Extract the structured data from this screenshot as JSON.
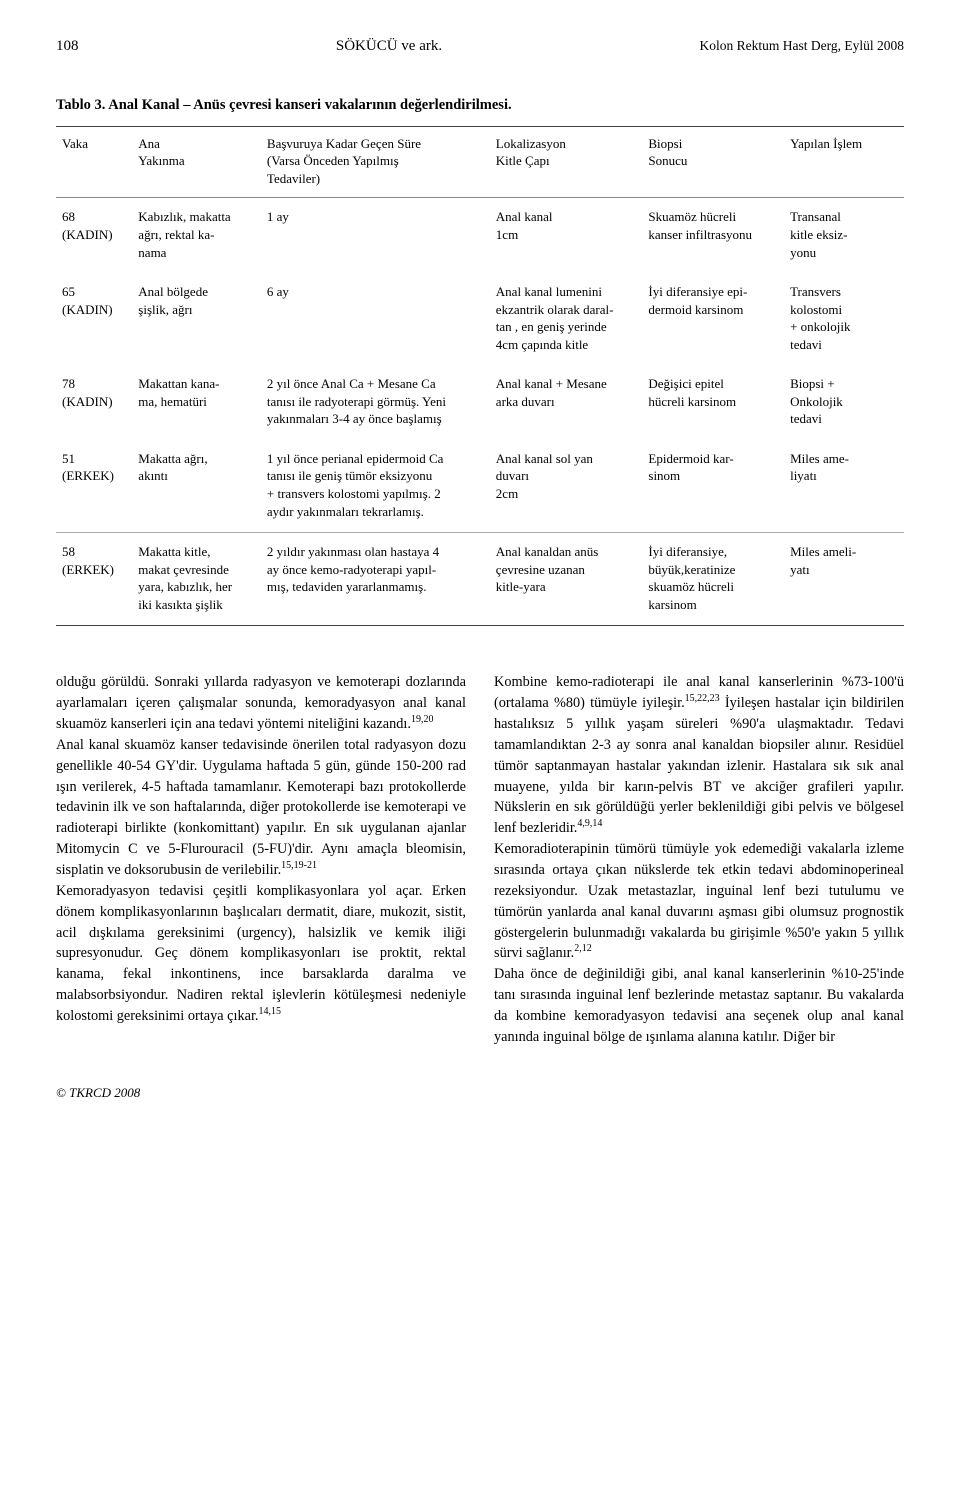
{
  "meta": {
    "page_number": "108",
    "running_authors": "SÖKÜCÜ ve ark.",
    "running_journal": "Kolon Rektum Hast Derg, Eylül 2008",
    "footer": "© TKRCD 2008"
  },
  "table": {
    "caption": "Tablo 3. Anal Kanal – Anüs çevresi kanseri vakalarının değerlendirilmesi.",
    "columns": [
      {
        "key": "vaka",
        "label": "Vaka",
        "width_class": "col-vaka"
      },
      {
        "key": "ana",
        "label": "Ana\nYakınma",
        "width_class": "col-ana"
      },
      {
        "key": "basv",
        "label": "Başvuruya Kadar Geçen Süre\n(Varsa Önceden Yapılmış\nTedaviler)",
        "width_class": "col-basv"
      },
      {
        "key": "lok",
        "label": "Lokalizasyon\nKitle Çapı",
        "width_class": "col-lok"
      },
      {
        "key": "biopsi",
        "label": "Biopsi\nSonucu",
        "width_class": "col-biopsi"
      },
      {
        "key": "islem",
        "label": "Yapılan İşlem",
        "width_class": "col-islem"
      }
    ],
    "rows": [
      {
        "vaka": "68\n(KADIN)",
        "ana": "Kabızlık, makatta\nağrı, rektal ka-\nnama",
        "basv": "1 ay",
        "lok": "Anal kanal\n1cm",
        "biopsi": "Skuamöz hücreli\nkanser infiltrasyonu",
        "islem": "Transanal\nkitle eksiz-\nyonu"
      },
      {
        "vaka": "65\n(KADIN)",
        "ana": "Anal bölgede\nşişlik, ağrı",
        "basv": "6 ay",
        "lok": "Anal kanal lumenini\nekzantrik olarak daral-\ntan , en geniş yerinde\n4cm çapında kitle",
        "biopsi": "İyi diferansiye epi-\ndermoid karsinom",
        "islem": "Transvers\nkolostomi\n+ onkolojik\ntedavi"
      },
      {
        "vaka": "78\n(KADIN)",
        "ana": "Makattan kana-\nma, hematüri",
        "basv": "2 yıl önce Anal Ca + Mesane Ca\ntanısı ile radyoterapi görmüş. Yeni\nyakınmaları 3-4 ay önce başlamış",
        "lok": "Anal kanal + Mesane\narka duvarı",
        "biopsi": "Değişici epitel\nhücreli karsinom",
        "islem": "Biopsi  +\nOnkolojik\ntedavi"
      },
      {
        "vaka": "51\n(ERKEK)",
        "ana": "Makatta ağrı,\nakıntı",
        "basv": "1 yıl önce perianal epidermoid Ca\ntanısı ile geniş tümör eksizyonu\n+ transvers kolostomi yapılmış. 2\naydır yakınmaları tekrarlamış.",
        "lok": "Anal kanal sol yan\nduvarı\n2cm",
        "biopsi": "Epidermoid kar-\nsinom",
        "islem": "Miles ame-\nliyatı"
      },
      {
        "sep": true,
        "vaka": "58\n(ERKEK)",
        "ana": "Makatta kitle,\nmakat çevresinde\nyara, kabızlık, her\niki kasıkta şişlik",
        "basv": "2 yıldır yakınması olan hastaya 4\nay önce kemo-radyoterapi yapıl-\nmış, tedaviden yararlanmamış.",
        "lok": "Anal kanaldan anüs\nçevresine uzanan\nkitle-yara",
        "biopsi": "İyi diferansiye,\nbüyük,keratinize\nskuamöz hücreli\nkarsinom",
        "islem": "Miles  ameli-\nyatı"
      }
    ]
  },
  "body": {
    "left": "olduğu görüldü. Sonraki yıllarda radyasyon ve kemoterapi dozlarında ayarlamaları içeren çalışmalar sonunda, kemoradyasyon anal kanal skuamöz kanserleri için ana tedavi yöntemi niteliğini kazandı.<sup>19,20</sup><br>Anal kanal skuamöz kanser tedavisinde önerilen total radyasyon dozu genellikle 40-54 GY'dir. Uygulama haftada 5 gün, günde 150-200 rad ışın verilerek, 4-5 haftada tamamlanır. Kemoterapi bazı protokollerde tedavinin ilk ve son haftalarında, diğer protokollerde ise kemoterapi ve radioterapi birlikte (konkomittant) yapılır. En sık uygulanan ajanlar Mitomycin C ve 5-Flurouracil (5-FU)'dir. Aynı amaçla bleomisin, sisplatin ve doksorubusin de verilebilir.<sup>15,19-21</sup><br>Kemoradyasyon tedavisi çeşitli komplikasyonlara yol açar. Erken dönem komplikasyonlarının başlıcaları dermatit, diare, mukozit, sistit, acil dışkılama gereksinimi (urgency), halsizlik ve kemik iliği supresyonudur. Geç dönem komplikasyonları ise proktit, rektal kanama, fekal inkontinens, ince barsaklarda daralma ve malabsorbsiyondur. Nadiren rektal işlevlerin kötüleşmesi nedeniyle kolostomi gereksinimi ortaya çıkar.<sup>14,15</sup>",
    "right": "Kombine kemo-radioterapi ile anal kanal kanserlerinin %73-100'ü (ortalama %80) tümüyle iyileşir.<sup>15,22,23</sup> İyileşen hastalar için bildirilen hastalıksız 5 yıllık yaşam süreleri  %90'a ulaşmaktadır. Tedavi tamamlandıktan 2-3 ay sonra anal kanaldan biopsiler alınır. Residüel tümör saptanmayan hastalar yakından izlenir. Hastalara sık sık anal muayene, yılda bir karın-pelvis BT ve akciğer grafileri yapılır. Nükslerin en sık görüldüğü yerler beklenildiği gibi pelvis ve bölgesel lenf bezleridir.<sup>4,9,14</sup><br>Kemoradioterapinin tümörü tümüyle yok edemediği vakalarla izleme sırasında ortaya çıkan nükslerde tek etkin tedavi abdominoperineal rezeksiyondur. Uzak metastazlar, inguinal lenf bezi tutulumu ve tümörün yanlarda anal kanal duvarını aşması gibi olumsuz prognostik göstergelerin bulunmadığı vakalarda bu girişimle %50'e yakın 5 yıllık sürvi sağlanır.<sup>2,12</sup><br>Daha önce de değinildiği gibi, anal kanal kanserlerinin %10-25'inde tanı sırasında inguinal lenf bezlerinde metastaz saptanır. Bu vakalarda da kombine kemoradyasyon tedavisi ana seçenek olup anal kanal yanında inguinal bölge de ışınlama alanına katılır. Diğer bir"
  }
}
